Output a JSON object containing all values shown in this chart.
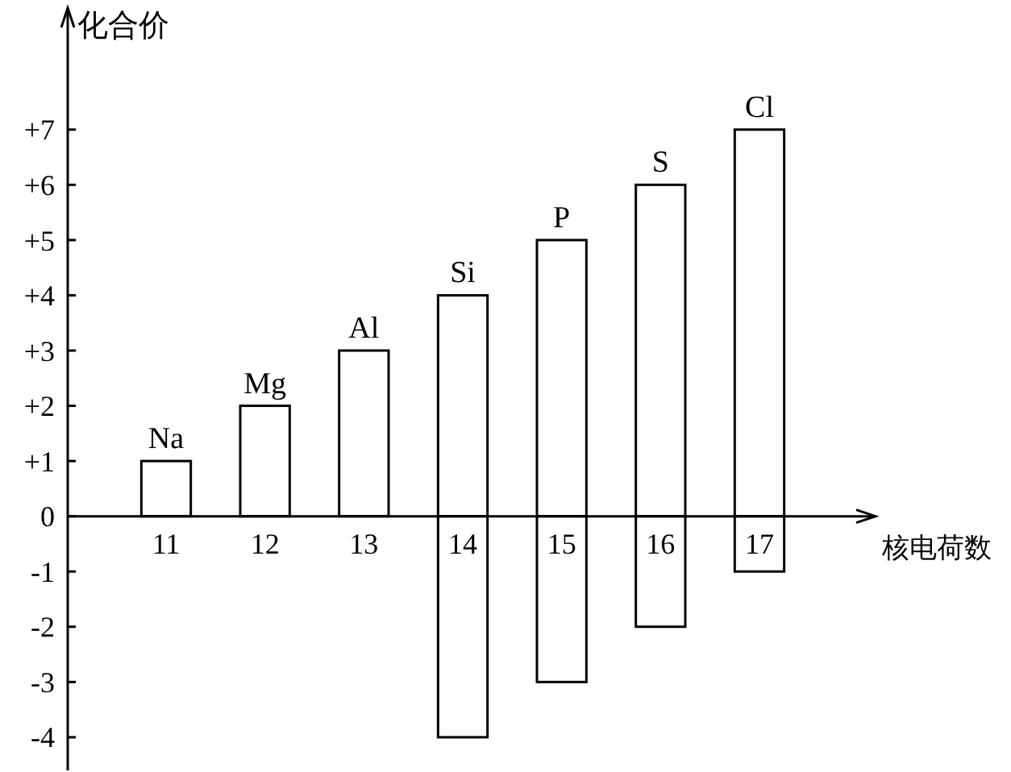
{
  "chart_data": {
    "type": "bar",
    "xlabel": "核电荷数",
    "ylabel": "化合价",
    "categories": [
      "11",
      "12",
      "13",
      "14",
      "15",
      "16",
      "17"
    ],
    "stacked": true,
    "series": [
      {
        "color": "#ffffff",
        "values": [
          1,
          2,
          3,
          4,
          5,
          6,
          7
        ]
      },
      {
        "color": "#ffffff",
        "values": [
          null,
          null,
          null,
          -4,
          -3,
          -2,
          -1
        ]
      }
    ],
    "ylim": [
      -4.6,
      9.2
    ],
    "yticks": [
      {
        "value": 7,
        "label": "+7"
      },
      {
        "value": 6,
        "label": "+6"
      },
      {
        "value": 5,
        "label": "+5"
      },
      {
        "value": 4,
        "label": "+4"
      },
      {
        "value": 3,
        "label": "+3"
      },
      {
        "value": 2,
        "label": "+2"
      },
      {
        "value": 1,
        "label": "+1"
      },
      0,
      -1,
      -2,
      -3,
      -4
    ],
    "annotations": [
      {
        "text": "Na",
        "x": "11",
        "y": 1
      },
      {
        "text": "Mg",
        "x": "12",
        "y": 2
      },
      {
        "text": "Al",
        "x": "13",
        "y": 3
      },
      {
        "text": "Si",
        "x": "14",
        "y": 4
      },
      {
        "text": "P",
        "x": "15",
        "y": 5
      },
      {
        "text": "S",
        "x": "16",
        "y": 6
      },
      {
        "text": "Cl",
        "x": "17",
        "y": 7
      }
    ]
  }
}
